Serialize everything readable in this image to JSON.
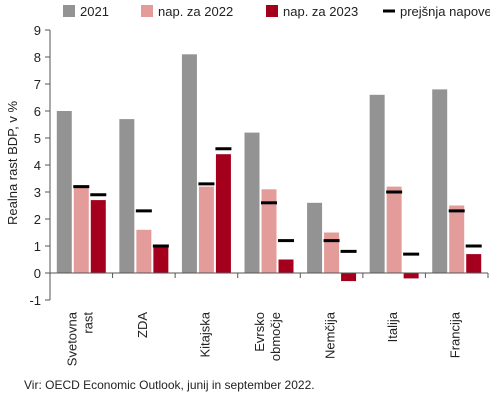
{
  "chart_data": {
    "type": "bar",
    "ylabel": "Realna rast BDP, v %",
    "ylim": [
      -1,
      9
    ],
    "yticks": [
      -1,
      0,
      1,
      2,
      3,
      4,
      5,
      6,
      7,
      8,
      9
    ],
    "grid": false,
    "legend_position": "top",
    "categories": [
      [
        "Svetovna",
        "rast"
      ],
      [
        "ZDA"
      ],
      [
        "Kitajska"
      ],
      [
        "Evrsko",
        "območje"
      ],
      [
        "Nemčija"
      ],
      [
        "Italija"
      ],
      [
        "Francija"
      ]
    ],
    "series": [
      {
        "name": "2021",
        "color": "#939393",
        "values": [
          6.0,
          5.7,
          8.1,
          5.2,
          2.6,
          6.6,
          6.8
        ]
      },
      {
        "name": "nap. za 2022",
        "color": "#e39c9a",
        "values": [
          3.2,
          1.6,
          3.2,
          3.1,
          1.5,
          3.2,
          2.5
        ]
      },
      {
        "name": "nap. za 2023",
        "color": "#a4001d",
        "values": [
          2.7,
          1.0,
          4.4,
          0.5,
          -0.3,
          -0.2,
          0.7
        ]
      }
    ],
    "markers": {
      "name": "prejšnja napoved",
      "color": "#000000",
      "values_2022": [
        3.2,
        2.3,
        3.3,
        2.6,
        1.2,
        3.0,
        2.3
      ],
      "values_2023": [
        2.9,
        1.0,
        4.6,
        1.2,
        0.8,
        0.7,
        1.0
      ]
    }
  },
  "source_note": "Vir: OECD Economic Outlook, junij in september 2022."
}
